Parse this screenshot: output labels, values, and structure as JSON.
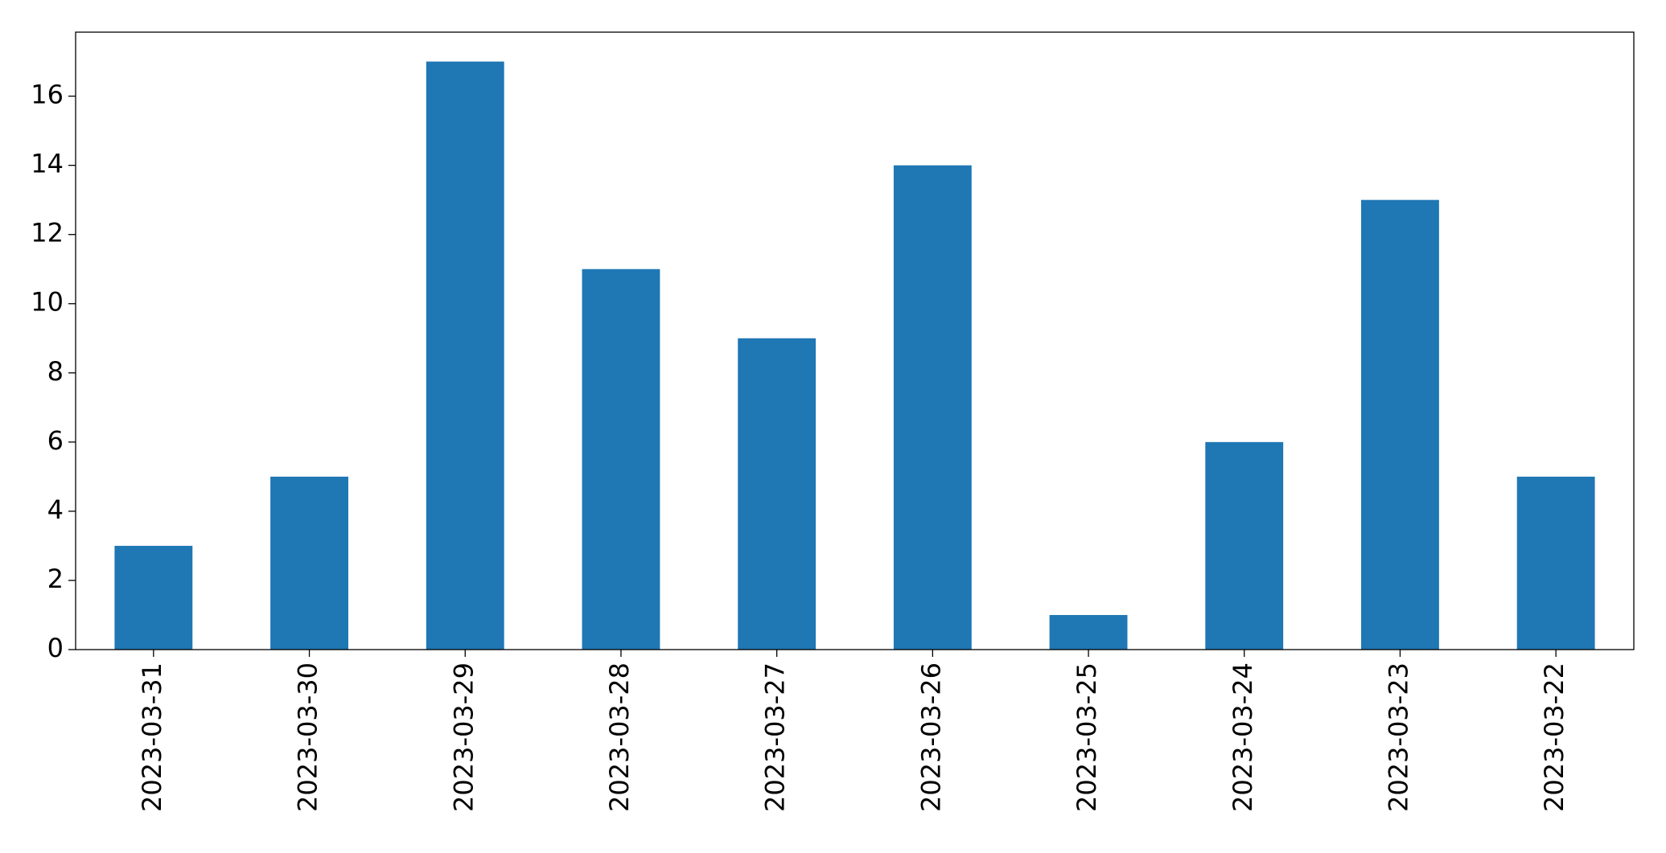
{
  "chart_data": {
    "type": "bar",
    "categories": [
      "2023-03-31",
      "2023-03-30",
      "2023-03-29",
      "2023-03-28",
      "2023-03-27",
      "2023-03-26",
      "2023-03-25",
      "2023-03-24",
      "2023-03-23",
      "2023-03-22"
    ],
    "values": [
      3,
      5,
      17,
      11,
      9,
      14,
      1,
      6,
      13,
      5
    ],
    "color": "#1f77b4",
    "ylim": [
      0,
      17.85
    ],
    "yticks": [
      0,
      2,
      4,
      6,
      8,
      10,
      12,
      14,
      16
    ],
    "grid": false
  }
}
